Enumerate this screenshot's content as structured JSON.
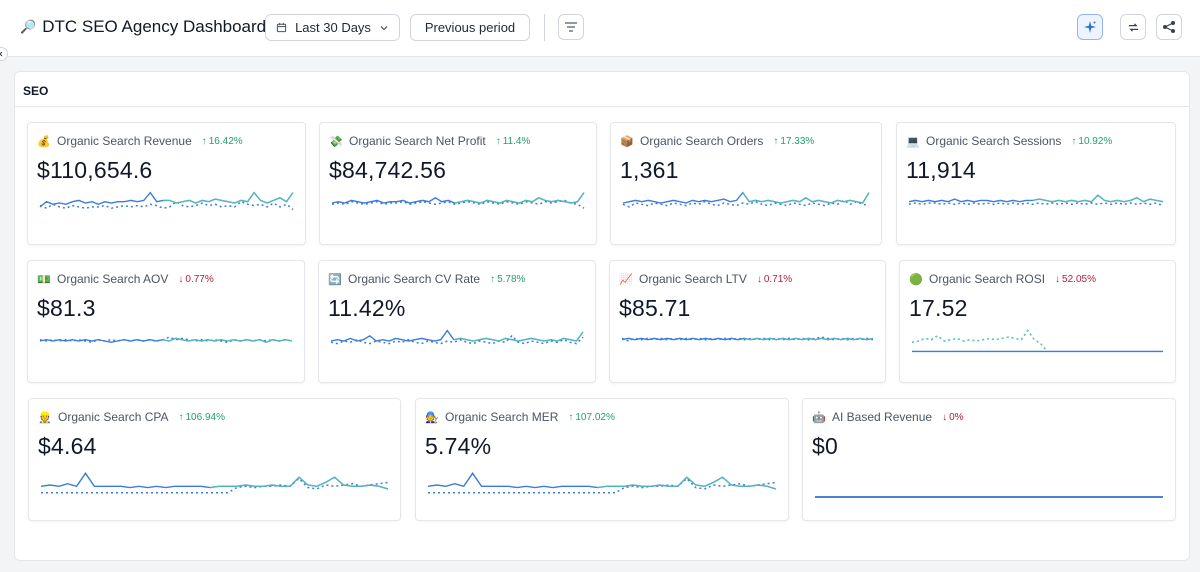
{
  "header": {
    "title_icon": "magnifier-icon",
    "title": "DTC SEO Agency Dashboard",
    "date_range": "Last 30 Days",
    "compare": "Previous period"
  },
  "section": {
    "title": "SEO"
  },
  "colors": {
    "current": "#3b7dd8",
    "previous": "#5bd6a7",
    "flat": "#2f6fd6",
    "up": "#22a06b",
    "down": "#b91c3c"
  },
  "cards": [
    {
      "icon": "💰",
      "title": "Organic Search Revenue",
      "delta": "16.42%",
      "dir": "up",
      "value": "$110,654.6",
      "cur": [
        0.35,
        0.55,
        0.45,
        0.5,
        0.45,
        0.55,
        0.6,
        0.5,
        0.55,
        0.45,
        0.55,
        0.5,
        0.55,
        0.55,
        0.6,
        0.55,
        0.6,
        0.9,
        0.55,
        0.6,
        0.6,
        0.5,
        0.55,
        0.6,
        0.5,
        0.6,
        0.55,
        0.65,
        0.6,
        0.55,
        0.5,
        0.6,
        0.55,
        0.9,
        0.6,
        0.5,
        0.6,
        0.7,
        0.55,
        0.9
      ],
      "prev": [
        0.4,
        0.3,
        0.45,
        0.35,
        0.3,
        0.4,
        0.35,
        0.3,
        0.35,
        0.35,
        0.4,
        0.3,
        0.35,
        0.4,
        0.35,
        0.4,
        0.35,
        0.45,
        0.4,
        0.3,
        0.35,
        0.55,
        0.4,
        0.35,
        0.4,
        0.5,
        0.4,
        0.45,
        0.35,
        0.4,
        0.35,
        0.55,
        0.45,
        0.4,
        0.45,
        0.35,
        0.5,
        0.35,
        0.45,
        0.25
      ]
    },
    {
      "icon": "💸",
      "title": "Organic Search Net Profit",
      "delta": "11.4%",
      "dir": "up",
      "value": "$84,742.56",
      "cur": [
        0.5,
        0.55,
        0.5,
        0.6,
        0.55,
        0.5,
        0.55,
        0.6,
        0.5,
        0.55,
        0.55,
        0.6,
        0.5,
        0.55,
        0.6,
        0.55,
        0.7,
        0.55,
        0.6,
        0.5,
        0.55,
        0.6,
        0.55,
        0.5,
        0.6,
        0.55,
        0.5,
        0.6,
        0.55,
        0.5,
        0.6,
        0.55,
        0.7,
        0.6,
        0.55,
        0.6,
        0.55,
        0.5,
        0.55,
        0.9
      ],
      "prev": [
        0.45,
        0.5,
        0.45,
        0.55,
        0.5,
        0.45,
        0.5,
        0.55,
        0.45,
        0.5,
        0.5,
        0.55,
        0.45,
        0.5,
        0.55,
        0.5,
        0.45,
        0.5,
        0.55,
        0.45,
        0.5,
        0.55,
        0.5,
        0.45,
        0.55,
        0.5,
        0.45,
        0.55,
        0.5,
        0.45,
        0.55,
        0.5,
        0.45,
        0.55,
        0.5,
        0.55,
        0.6,
        0.5,
        0.45,
        0.3
      ]
    },
    {
      "icon": "📦",
      "title": "Organic Search Orders",
      "delta": "17.33%",
      "dir": "up",
      "value": "1,361",
      "cur": [
        0.5,
        0.55,
        0.6,
        0.55,
        0.6,
        0.55,
        0.5,
        0.55,
        0.6,
        0.55,
        0.5,
        0.6,
        0.55,
        0.6,
        0.55,
        0.6,
        0.65,
        0.55,
        0.6,
        0.9,
        0.55,
        0.6,
        0.55,
        0.6,
        0.55,
        0.5,
        0.55,
        0.6,
        0.55,
        0.7,
        0.55,
        0.6,
        0.55,
        0.5,
        0.6,
        0.55,
        0.6,
        0.55,
        0.5,
        0.9
      ],
      "prev": [
        0.45,
        0.35,
        0.5,
        0.45,
        0.4,
        0.5,
        0.45,
        0.4,
        0.5,
        0.45,
        0.4,
        0.5,
        0.45,
        0.55,
        0.45,
        0.4,
        0.5,
        0.45,
        0.4,
        0.5,
        0.45,
        0.55,
        0.45,
        0.4,
        0.5,
        0.45,
        0.4,
        0.5,
        0.45,
        0.4,
        0.5,
        0.45,
        0.4,
        0.5,
        0.45,
        0.6,
        0.45,
        0.55,
        0.45,
        0.4
      ]
    },
    {
      "icon": "💻",
      "title": "Organic Search Sessions",
      "delta": "10.92%",
      "dir": "up",
      "value": "11,914",
      "cur": [
        0.55,
        0.6,
        0.55,
        0.6,
        0.55,
        0.6,
        0.55,
        0.65,
        0.55,
        0.6,
        0.55,
        0.6,
        0.6,
        0.55,
        0.6,
        0.55,
        0.6,
        0.55,
        0.6,
        0.6,
        0.65,
        0.6,
        0.55,
        0.6,
        0.55,
        0.6,
        0.55,
        0.6,
        0.55,
        0.8,
        0.6,
        0.55,
        0.6,
        0.55,
        0.6,
        0.7,
        0.55,
        0.65,
        0.6,
        0.55
      ],
      "prev": [
        0.45,
        0.5,
        0.45,
        0.5,
        0.5,
        0.45,
        0.5,
        0.45,
        0.5,
        0.45,
        0.5,
        0.45,
        0.5,
        0.45,
        0.5,
        0.45,
        0.5,
        0.45,
        0.5,
        0.45,
        0.5,
        0.45,
        0.5,
        0.45,
        0.5,
        0.45,
        0.5,
        0.45,
        0.5,
        0.45,
        0.5,
        0.45,
        0.5,
        0.45,
        0.5,
        0.45,
        0.5,
        0.45,
        0.5,
        0.4
      ]
    },
    {
      "icon": "💵",
      "title": "Organic Search AOV",
      "delta": "0.77%",
      "dir": "down",
      "value": "$81.3",
      "cur": [
        0.5,
        0.55,
        0.5,
        0.55,
        0.5,
        0.55,
        0.5,
        0.55,
        0.5,
        0.55,
        0.5,
        0.45,
        0.5,
        0.55,
        0.5,
        0.55,
        0.5,
        0.55,
        0.5,
        0.55,
        0.5,
        0.6,
        0.55,
        0.5,
        0.55,
        0.5,
        0.55,
        0.5,
        0.55,
        0.5,
        0.55,
        0.5,
        0.55,
        0.5,
        0.55,
        0.45,
        0.55,
        0.5,
        0.55,
        0.5
      ],
      "prev": [
        0.55,
        0.5,
        0.55,
        0.5,
        0.55,
        0.5,
        0.55,
        0.5,
        0.45,
        0.55,
        0.5,
        0.55,
        0.5,
        0.55,
        0.5,
        0.55,
        0.5,
        0.55,
        0.5,
        0.55,
        0.65,
        0.55,
        0.6,
        0.55,
        0.5,
        0.55,
        0.5,
        0.55,
        0.5,
        0.45,
        0.55,
        0.5,
        0.55,
        0.5,
        0.55,
        0.5,
        0.55,
        0.5,
        0.55,
        0.5
      ]
    },
    {
      "icon": "🔄",
      "title": "Organic Search CV Rate",
      "delta": "5.78%",
      "dir": "up",
      "value": "11.42%",
      "cur": [
        0.5,
        0.55,
        0.5,
        0.6,
        0.5,
        0.55,
        0.7,
        0.5,
        0.55,
        0.5,
        0.6,
        0.55,
        0.5,
        0.55,
        0.6,
        0.55,
        0.5,
        0.55,
        0.9,
        0.55,
        0.6,
        0.55,
        0.5,
        0.55,
        0.6,
        0.55,
        0.5,
        0.6,
        0.55,
        0.5,
        0.55,
        0.6,
        0.55,
        0.5,
        0.55,
        0.5,
        0.6,
        0.55,
        0.5,
        0.85
      ],
      "prev": [
        0.45,
        0.4,
        0.5,
        0.45,
        0.55,
        0.45,
        0.4,
        0.5,
        0.45,
        0.4,
        0.5,
        0.45,
        0.55,
        0.45,
        0.4,
        0.5,
        0.45,
        0.4,
        0.5,
        0.45,
        0.55,
        0.45,
        0.4,
        0.5,
        0.45,
        0.4,
        0.5,
        0.45,
        0.7,
        0.45,
        0.4,
        0.5,
        0.45,
        0.4,
        0.5,
        0.45,
        0.55,
        0.45,
        0.4,
        0.65
      ]
    },
    {
      "icon": "📈",
      "title": "Organic Search LTV",
      "delta": "0.71%",
      "dir": "down",
      "value": "$85.71",
      "cur": [
        0.55,
        0.6,
        0.55,
        0.6,
        0.55,
        0.6,
        0.55,
        0.6,
        0.55,
        0.6,
        0.55,
        0.6,
        0.55,
        0.6,
        0.55,
        0.6,
        0.55,
        0.6,
        0.55,
        0.6,
        0.55,
        0.6,
        0.55,
        0.6,
        0.55,
        0.6,
        0.55,
        0.6,
        0.55,
        0.6,
        0.55,
        0.6,
        0.55,
        0.6,
        0.55,
        0.6,
        0.55,
        0.6,
        0.55,
        0.6
      ],
      "prev": [
        0.6,
        0.5,
        0.6,
        0.55,
        0.6,
        0.55,
        0.6,
        0.55,
        0.6,
        0.55,
        0.6,
        0.55,
        0.6,
        0.55,
        0.6,
        0.55,
        0.6,
        0.55,
        0.6,
        0.55,
        0.6,
        0.55,
        0.6,
        0.55,
        0.6,
        0.55,
        0.6,
        0.55,
        0.6,
        0.55,
        0.6,
        0.65,
        0.6,
        0.55,
        0.6,
        0.55,
        0.6,
        0.55,
        0.6,
        0.55
      ]
    },
    {
      "icon": "🟢",
      "title": "Organic Search ROSI",
      "delta": "52.05%",
      "dir": "down",
      "value": "17.52",
      "cur": [
        0.1,
        0.1,
        0.1,
        0.1,
        0.1,
        0.1,
        0.1,
        0.1,
        0.1,
        0.1,
        0.1,
        0.1,
        0.1,
        0.1,
        0.1,
        0.1,
        0.1,
        0.1,
        0.1,
        0.1,
        0.1,
        0.1,
        0.1,
        0.1,
        0.1,
        0.1,
        0.1,
        0.1,
        0.1,
        0.1,
        0.1,
        0.1,
        0.1,
        0.1,
        0.1,
        0.1,
        0.1,
        0.1,
        0.1,
        0.1
      ],
      "prev": [
        0.45,
        0.5,
        0.6,
        0.55,
        0.7,
        0.5,
        0.55,
        0.6,
        0.5,
        0.55,
        0.5,
        0.55,
        0.6,
        0.55,
        0.6,
        0.65,
        0.6,
        0.55,
        0.9,
        0.55,
        0.4,
        0.1,
        null,
        null,
        null,
        null,
        null,
        null,
        null,
        null,
        null,
        null,
        null,
        null,
        null,
        null,
        null,
        null,
        null,
        null
      ]
    },
    {
      "icon": "👷",
      "title": "Organic Search CPA",
      "delta": "106.94%",
      "dir": "up",
      "value": "$4.64",
      "cur": [
        0.45,
        0.5,
        0.45,
        0.55,
        0.45,
        0.95,
        0.45,
        0.45,
        0.45,
        0.45,
        0.4,
        0.45,
        0.4,
        0.45,
        0.4,
        0.45,
        0.45,
        0.45,
        0.45,
        0.4,
        0.45,
        0.45,
        0.45,
        0.5,
        0.45,
        0.45,
        0.5,
        0.45,
        0.45,
        0.8,
        0.5,
        0.45,
        0.6,
        0.8,
        0.5,
        0.45,
        0.45,
        0.5,
        0.45,
        0.35
      ],
      "prev": [
        0.2,
        0.2,
        0.2,
        0.2,
        0.2,
        0.2,
        0.2,
        0.2,
        0.2,
        0.2,
        0.2,
        0.2,
        0.2,
        0.2,
        0.2,
        0.2,
        0.2,
        0.2,
        0.2,
        0.2,
        0.2,
        0.2,
        0.4,
        0.45,
        0.4,
        0.45,
        0.45,
        0.5,
        0.45,
        0.75,
        0.4,
        0.35,
        0.5,
        0.45,
        0.5,
        0.55,
        0.45,
        0.5,
        0.55,
        0.6
      ]
    },
    {
      "icon": "🧑‍🔧",
      "title": "Organic Search MER",
      "delta": "107.02%",
      "dir": "up",
      "value": "5.74%",
      "cur": [
        0.45,
        0.5,
        0.45,
        0.55,
        0.45,
        0.95,
        0.45,
        0.45,
        0.45,
        0.45,
        0.4,
        0.45,
        0.4,
        0.45,
        0.4,
        0.45,
        0.45,
        0.45,
        0.45,
        0.4,
        0.45,
        0.45,
        0.45,
        0.5,
        0.45,
        0.45,
        0.5,
        0.45,
        0.45,
        0.8,
        0.5,
        0.45,
        0.6,
        0.8,
        0.5,
        0.45,
        0.45,
        0.5,
        0.45,
        0.35
      ],
      "prev": [
        0.2,
        0.2,
        0.2,
        0.2,
        0.2,
        0.2,
        0.2,
        0.2,
        0.2,
        0.2,
        0.2,
        0.2,
        0.2,
        0.2,
        0.2,
        0.2,
        0.2,
        0.2,
        0.2,
        0.2,
        0.2,
        0.2,
        0.4,
        0.45,
        0.4,
        0.45,
        0.45,
        0.5,
        0.45,
        0.75,
        0.4,
        0.35,
        0.5,
        0.45,
        0.5,
        0.55,
        0.45,
        0.5,
        0.55,
        0.6
      ]
    },
    {
      "icon": "🤖",
      "title": "AI Based Revenue",
      "delta": "0%",
      "dir": "down",
      "value": "$0",
      "cur": [
        0.1,
        0.1,
        0.1,
        0.1,
        0.1,
        0.1,
        0.1,
        0.1,
        0.1,
        0.1,
        0.1,
        0.1,
        0.1,
        0.1,
        0.1,
        0.1,
        0.1,
        0.1,
        0.1,
        0.1,
        0.1,
        0.1,
        0.1,
        0.1,
        0.1,
        0.1,
        0.1,
        0.1,
        0.1,
        0.1,
        0.1,
        0.1,
        0.1,
        0.1,
        0.1,
        0.1,
        0.1,
        0.1,
        0.1,
        0.1
      ],
      "prev": [],
      "flat": true
    }
  ]
}
